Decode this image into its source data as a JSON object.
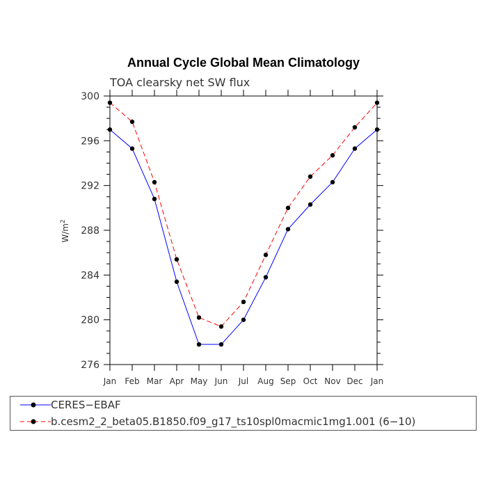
{
  "chart_data": {
    "type": "line",
    "title": "Annual Cycle Global Mean Climatology",
    "subtitle": "TOA clearsky net SW flux",
    "ylabel_base": "W/m",
    "ylabel_sup": "2",
    "xlabel": "",
    "categories": [
      "Jan",
      "Feb",
      "Mar",
      "Apr",
      "May",
      "Jun",
      "Jul",
      "Aug",
      "Sep",
      "Oct",
      "Nov",
      "Dec",
      "Jan"
    ],
    "ylim": [
      276,
      300
    ],
    "yticks": [
      276,
      280,
      284,
      288,
      292,
      296,
      300
    ],
    "series": [
      {
        "name": "CERES−EBAF",
        "color": "#0000ff",
        "dashed": false,
        "values": [
          297.0,
          295.3,
          290.8,
          283.4,
          277.8,
          277.8,
          280.0,
          283.8,
          288.1,
          290.3,
          292.3,
          295.3,
          297.0
        ]
      },
      {
        "name": "b.cesm2_2_beta05.B1850.f09_g17_ts10spl0macmic1mg1.001 (6−10)",
        "color": "#ff0000",
        "dashed": true,
        "values": [
          299.4,
          297.7,
          292.3,
          285.4,
          280.2,
          279.4,
          281.6,
          285.8,
          290.0,
          292.8,
          294.7,
          297.2,
          299.4
        ]
      }
    ]
  }
}
